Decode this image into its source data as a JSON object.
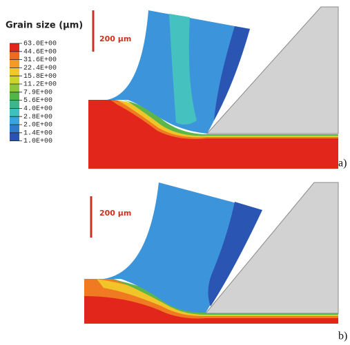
{
  "legend": {
    "title": "Grain size (µm)",
    "levels": [
      "63.0E+00",
      "44.6E+00",
      "31.6E+00",
      "22.4E+00",
      "15.8E+00",
      "11.2E+00",
      "7.9E+00",
      "5.6E+00",
      "4.0E+00",
      "2.8E+00",
      "2.0E+00",
      "1.4E+00",
      "1.0E+00"
    ]
  },
  "panels": [
    {
      "scale_bar": "200 µm",
      "label": "a)"
    },
    {
      "scale_bar": "200 µm",
      "label": "b)"
    }
  ]
}
